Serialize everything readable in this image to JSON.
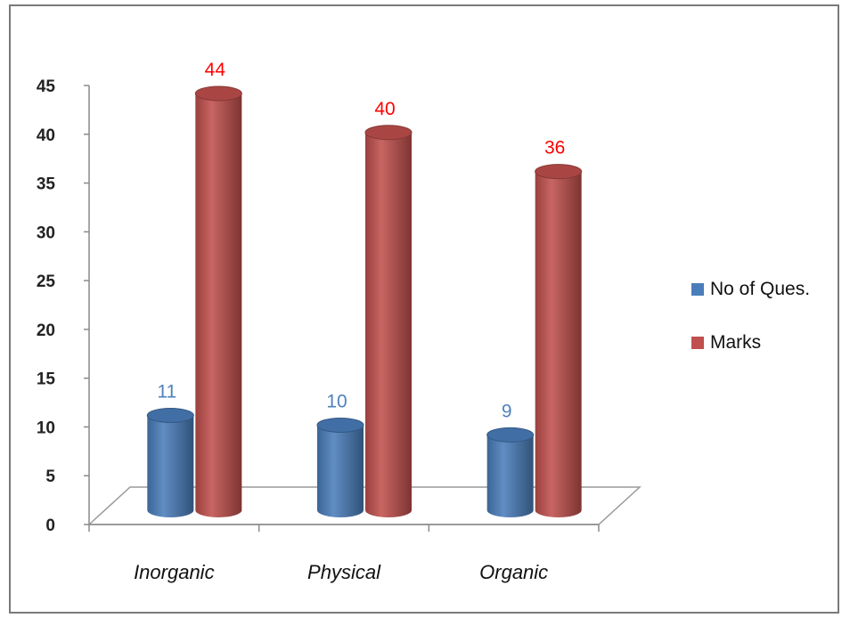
{
  "chart_data": {
    "type": "bar",
    "categories": [
      "Inorganic",
      "Physical",
      "Organic"
    ],
    "series": [
      {
        "name": "No of Ques.",
        "values": [
          11,
          10,
          9
        ],
        "color": "#4a7ebb",
        "label_color": "#4f81bd"
      },
      {
        "name": "Marks",
        "values": [
          44,
          40,
          36
        ],
        "color": "#c0504d",
        "label_color": "#ff0000"
      }
    ],
    "ylim": [
      0,
      45
    ],
    "yticks": [
      0,
      5,
      10,
      15,
      20,
      25,
      30,
      35,
      40,
      45
    ],
    "legend_position": "right",
    "bar_style": "3d-cylinder",
    "grid": false
  }
}
